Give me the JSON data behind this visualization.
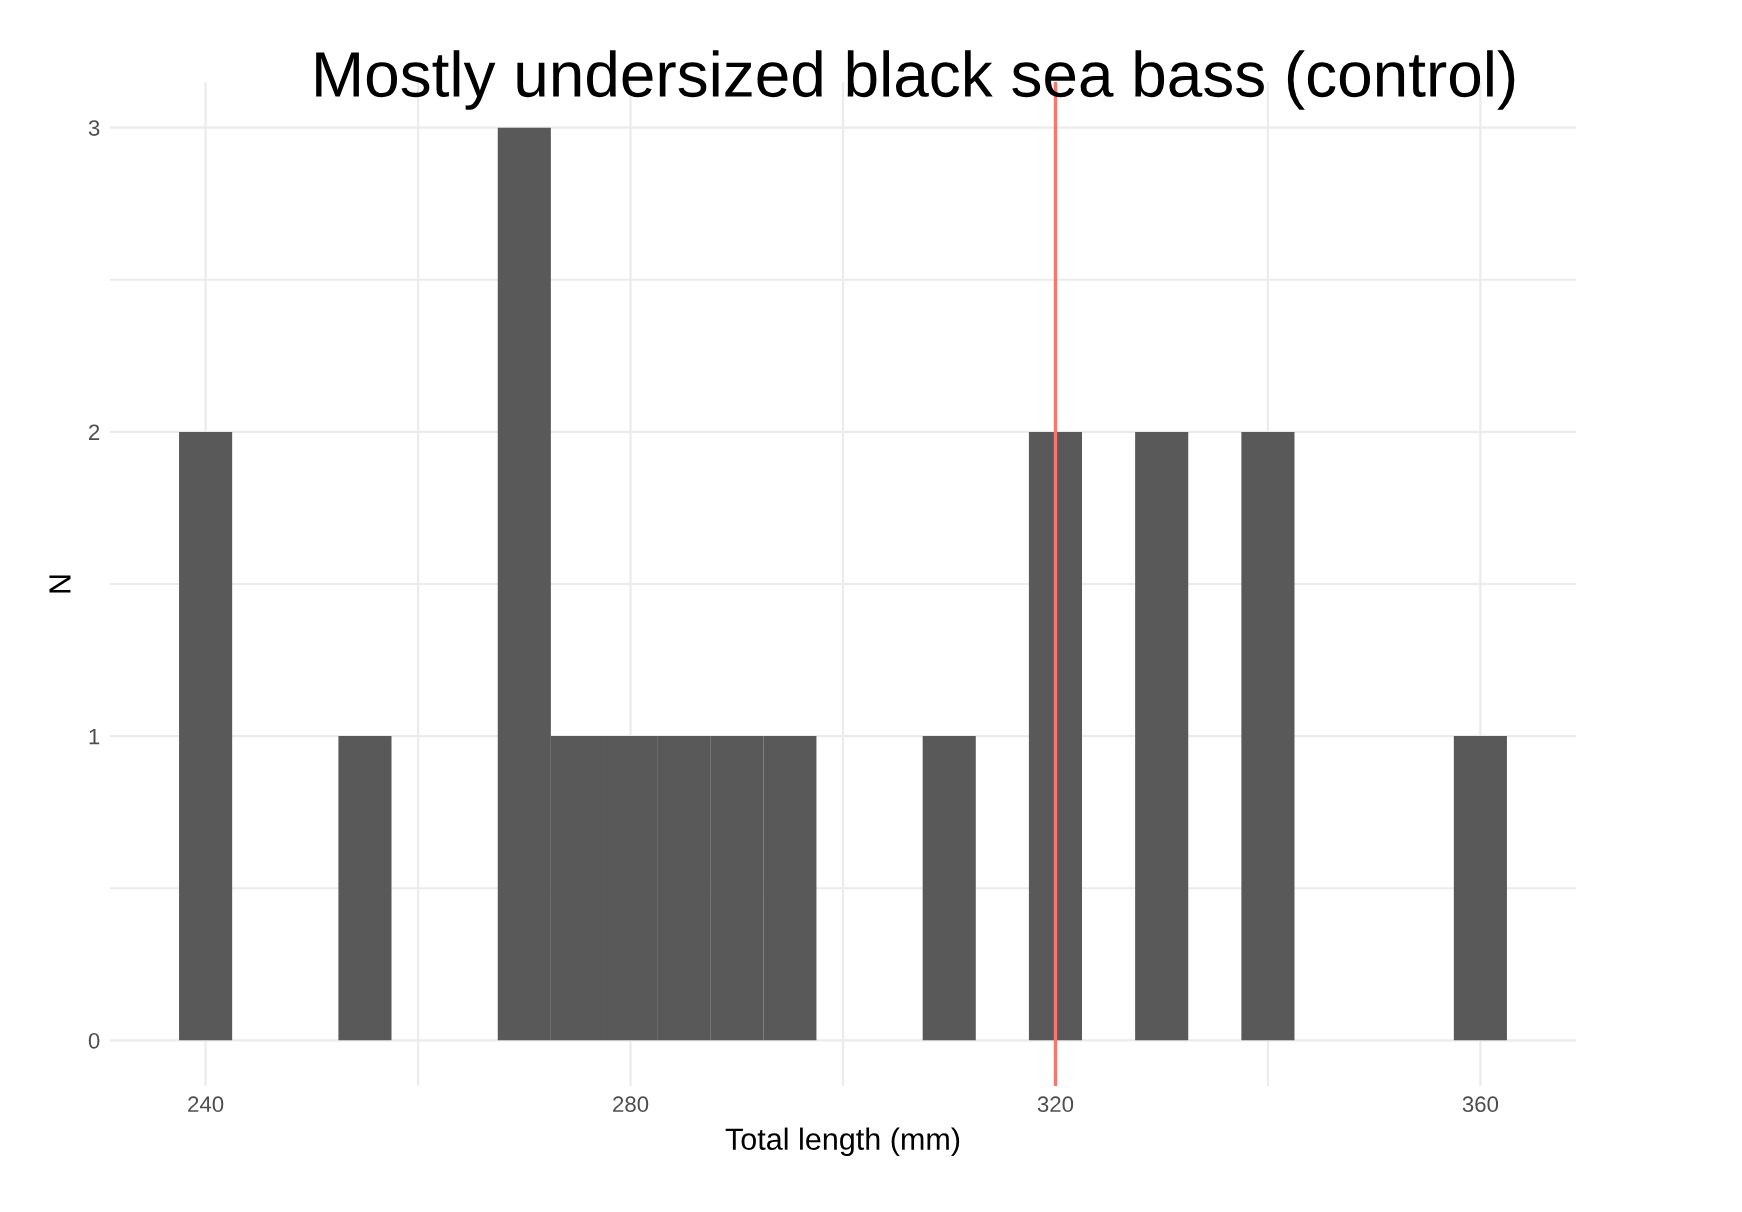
{
  "chart_data": {
    "type": "histogram",
    "title": "Mostly undersized black sea bass (control)",
    "xlabel": "Total length (mm)",
    "ylabel": "N",
    "bins": [
      237.5,
      242.5,
      247.5,
      252.5,
      257.5,
      262.5,
      267.5,
      272.5,
      277.5,
      282.5,
      287.5,
      292.5,
      297.5,
      302.5,
      307.5,
      312.5,
      317.5,
      322.5,
      327.5,
      332.5,
      337.5,
      342.5,
      347.5,
      352.5,
      357.5,
      362.5
    ],
    "values": [
      2,
      0,
      0,
      1,
      0,
      0,
      3,
      1,
      1,
      1,
      1,
      1,
      0,
      0,
      1,
      0,
      2,
      0,
      2,
      0,
      2,
      0,
      0,
      0,
      1
    ],
    "color": "#595959",
    "xlim": [
      231,
      369
    ],
    "ylim": [
      -0.15,
      3.15
    ],
    "xticks": [
      240,
      {
        "value": 260,
        "label": null
      },
      280,
      {
        "value": 300,
        "label": null
      },
      320,
      {
        "value": 340,
        "label": null
      },
      360
    ],
    "yticks": [
      0,
      {
        "value": 0.5,
        "label": null
      },
      1,
      {
        "value": 1.5,
        "label": null
      },
      2,
      {
        "value": 2.5,
        "label": null
      },
      3
    ],
    "grid": true,
    "ref_lines": [
      {
        "axis": "x",
        "value": 320,
        "color": "#f8766d"
      }
    ]
  }
}
